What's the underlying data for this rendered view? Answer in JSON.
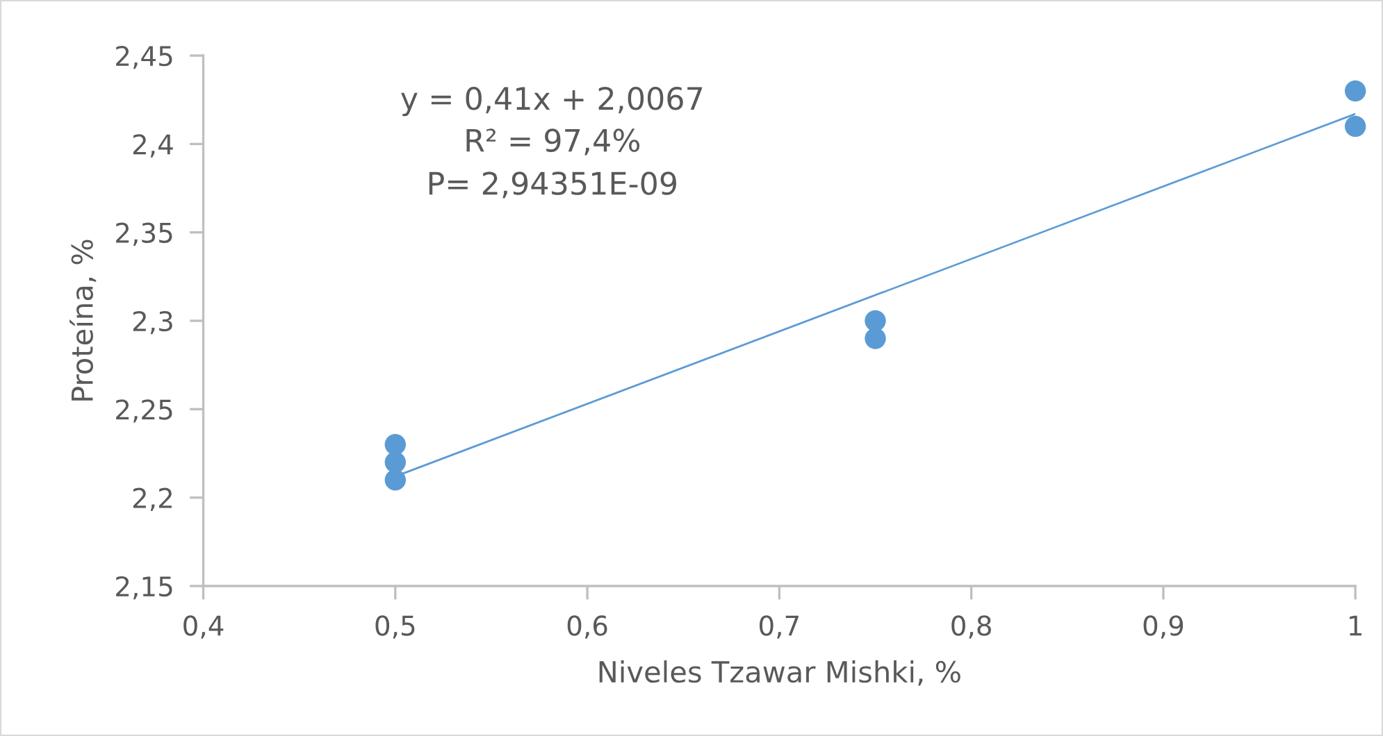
{
  "chart_data": {
    "type": "scatter",
    "xlabel": "Niveles Tzawar Mishki, %",
    "ylabel": "Proteína, %",
    "annotations": [
      "y = 0,41x + 2,0067",
      "R² = 97,4%",
      "P= 2,94351E-09"
    ],
    "series": [
      {
        "color": "#5b9bd5",
        "x": [
          0.5,
          0.5,
          0.5,
          0.75,
          0.75,
          1,
          1
        ],
        "values": [
          2.23,
          2.22,
          2.21,
          2.3,
          2.29,
          2.43,
          2.41
        ],
        "marker": "circle"
      },
      {
        "type": "line",
        "color": "#5b9bd5",
        "x": [
          0.5,
          1
        ],
        "values": [
          2.212,
          2.417
        ],
        "marker": "none",
        "line_style": "solid"
      }
    ],
    "xlim": [
      0.4,
      1
    ],
    "xticks": [
      {
        "value": 0.4,
        "label": "0,4"
      },
      {
        "value": 0.5,
        "label": "0,5"
      },
      {
        "value": 0.6,
        "label": "0,6"
      },
      {
        "value": 0.7,
        "label": "0,7"
      },
      {
        "value": 0.8,
        "label": "0,8"
      },
      {
        "value": 0.9,
        "label": "0,9"
      },
      1
    ],
    "ylim": [
      2.15,
      2.45
    ],
    "yticks": [
      {
        "value": 2.15,
        "label": "2,15"
      },
      {
        "value": 2.2,
        "label": "2,2"
      },
      {
        "value": 2.25,
        "label": "2,25"
      },
      {
        "value": 2.3,
        "label": "2,3"
      },
      {
        "value": 2.35,
        "label": "2,35"
      },
      {
        "value": 2.4,
        "label": "2,4"
      },
      {
        "value": 2.45,
        "label": "2,45"
      }
    ],
    "grid": false
  }
}
